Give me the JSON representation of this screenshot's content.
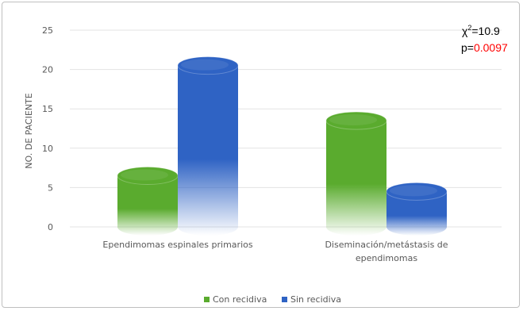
{
  "chart_data": {
    "type": "bar",
    "style": "3d-cylinder",
    "ylabel": "NO. DE PACIENTE",
    "ylim": [
      0,
      25
    ],
    "yticks": [
      0,
      5,
      10,
      15,
      20,
      25
    ],
    "grid": true,
    "legend_position": "bottom",
    "categories": [
      [
        "Ependimomas espinales primarios"
      ],
      [
        "Diseminación/metástasis de",
        "ependimomas"
      ]
    ],
    "series": [
      {
        "name": "Con recidiva",
        "values": [
          6.5,
          13.5
        ],
        "color": "#5aab2e"
      },
      {
        "name": "Sin recidiva",
        "values": [
          20.5,
          4.5
        ],
        "color": "#2f63c4"
      }
    ],
    "annotations": {
      "chi_symbol": "χ",
      "chi_exp": "2",
      "chi_value": "=10.9",
      "p_prefix": "p=",
      "p_value": "0.0097",
      "p_color": "#ff0000"
    }
  }
}
